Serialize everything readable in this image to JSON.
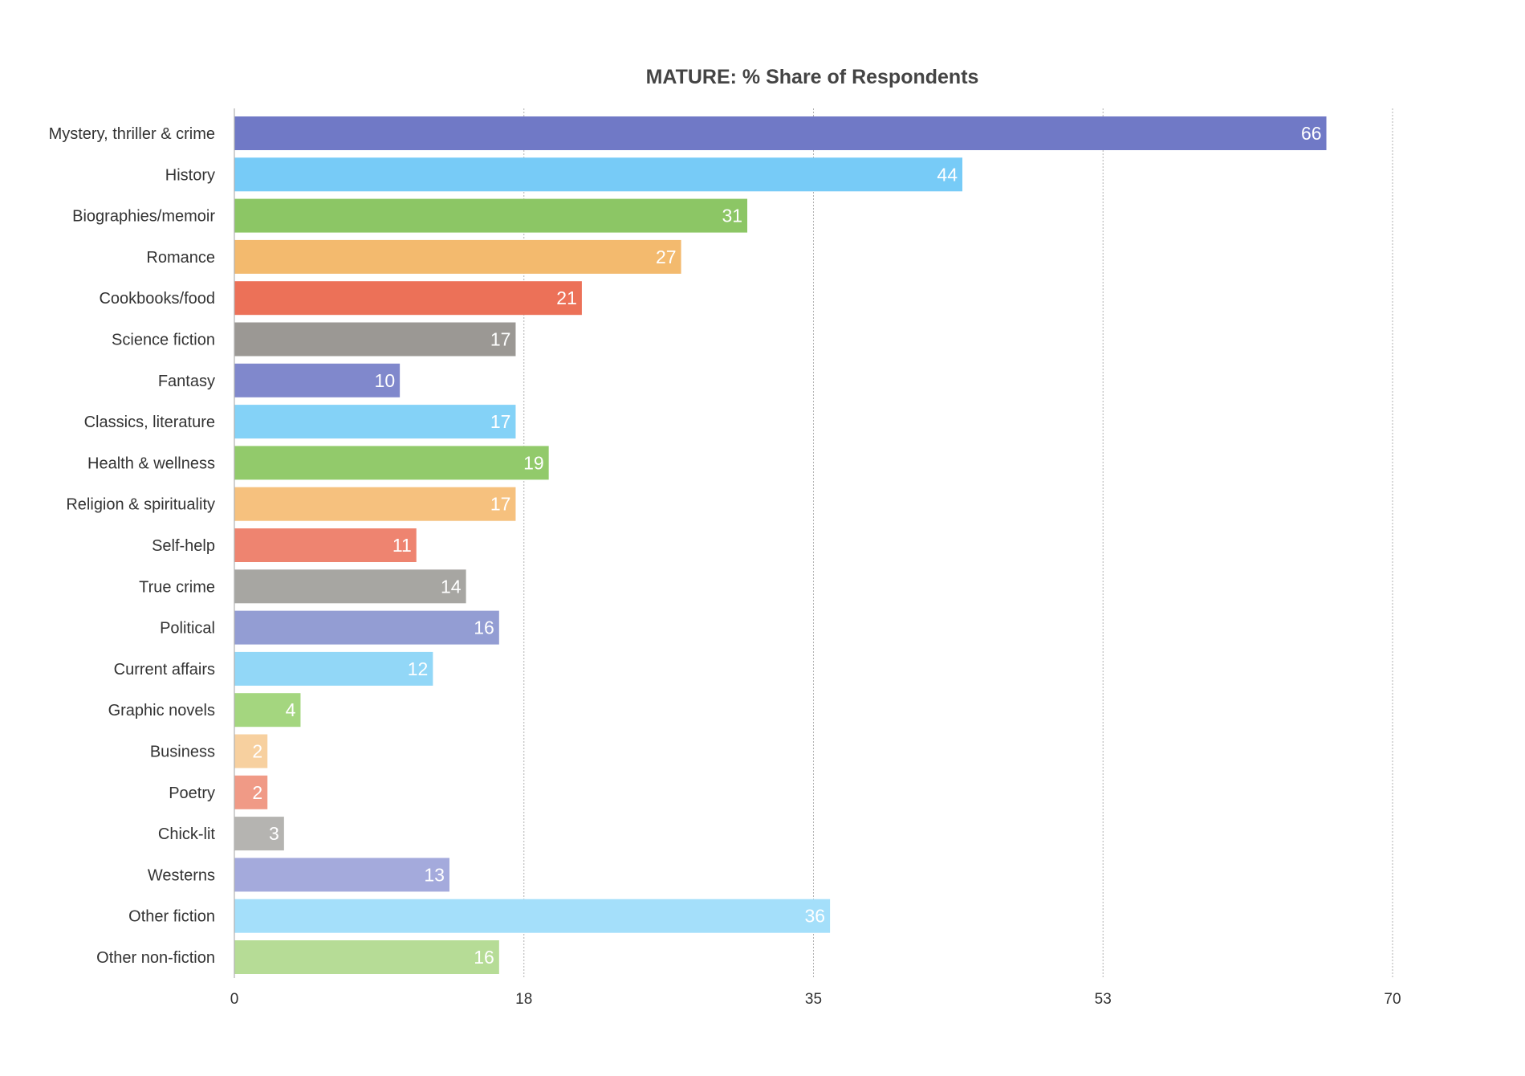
{
  "chart_data": {
    "type": "bar",
    "orientation": "horizontal",
    "title": "MATURE: % Share of Respondents",
    "xlabel": "",
    "ylabel": "",
    "xlim": [
      0,
      70
    ],
    "x_ticks": [
      "0",
      "18",
      "35",
      "53",
      "70"
    ],
    "x_tick_values": [
      0,
      17.5,
      35,
      52.5,
      70
    ],
    "grid": "vertical dashed",
    "categories": [
      "Mystery, thriller & crime",
      "History",
      "Biographies/memoir",
      "Romance",
      "Cookbooks/food",
      "Science fiction",
      "Fantasy",
      "Classics, literature",
      "Health & wellness",
      "Religion & spirituality",
      "Self-help",
      "True crime",
      "Political",
      "Current affairs",
      "Graphic novels",
      "Business",
      "Poetry",
      "Chick-lit",
      "Westerns",
      "Other fiction",
      "Other non-fiction"
    ],
    "values": [
      66,
      44,
      31,
      27,
      21,
      17,
      10,
      17,
      19,
      17,
      11,
      14,
      16,
      12,
      4,
      2,
      2,
      3,
      13,
      36,
      16
    ],
    "colors": [
      "#7079c6",
      "#77cbf7",
      "#8cc665",
      "#f3ba6e",
      "#ec7158",
      "#9b9894",
      "#8088cc",
      "#84d2f7",
      "#92ca6b",
      "#f6c17e",
      "#ee8470",
      "#a7a6a2",
      "#939dd3",
      "#92d7f7",
      "#a4d67f",
      "#f7d09f",
      "#f09a86",
      "#b5b4b1",
      "#a4aadc",
      "#a4dffa",
      "#b6dc96"
    ]
  }
}
